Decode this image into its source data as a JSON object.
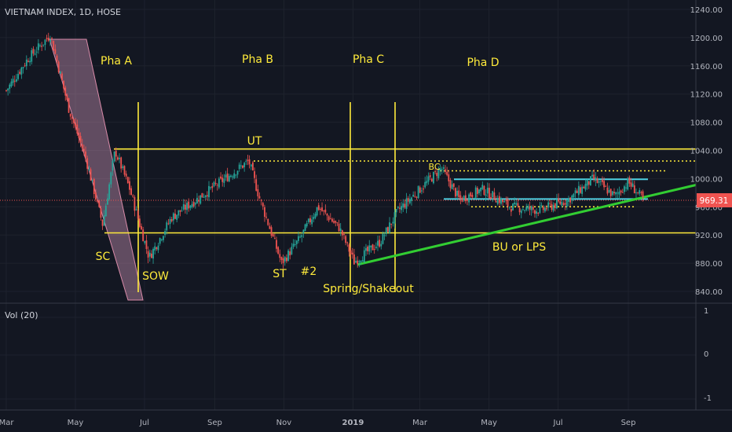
{
  "header": {
    "symbol": "VIETNAM INDEX, 1D, HOSE",
    "volume_label": "Vol (20)"
  },
  "price_badge": "969.31",
  "chart_data": {
    "type": "candlestick",
    "symbol": "VIETNAM INDEX",
    "interval": "1D",
    "exchange": "HOSE",
    "ylim": [
      830,
      1250
    ],
    "y_ticks": [
      840,
      880,
      920,
      960,
      1000,
      1040,
      1080,
      1120,
      1160,
      1200,
      1240
    ],
    "y_tick_labels": [
      "840.00",
      "880.00",
      "920.00",
      "960.00",
      "1000.00",
      "1040.00",
      "1080.00",
      "1120.00",
      "1160.00",
      "1200.00",
      "1240.00"
    ],
    "x_tick_labels": [
      "Mar",
      "May",
      "Jul",
      "Sep",
      "Nov",
      "2019",
      "Mar",
      "May",
      "Jul",
      "Sep"
    ],
    "volume_axis_ticks": [
      1,
      0,
      -1
    ],
    "last_price": 969.31,
    "price_path": [
      {
        "date": "2018-03-01",
        "value": 1125
      },
      {
        "date": "2018-03-20",
        "value": 1170
      },
      {
        "date": "2018-04-09",
        "value": 1204
      },
      {
        "date": "2018-04-25",
        "value": 1100
      },
      {
        "date": "2018-05-10",
        "value": 1030
      },
      {
        "date": "2018-05-25",
        "value": 935
      },
      {
        "date": "2018-06-05",
        "value": 1040
      },
      {
        "date": "2018-06-18",
        "value": 985
      },
      {
        "date": "2018-07-05",
        "value": 888
      },
      {
        "date": "2018-07-25",
        "value": 945
      },
      {
        "date": "2018-08-20",
        "value": 975
      },
      {
        "date": "2018-09-10",
        "value": 1000
      },
      {
        "date": "2018-10-01",
        "value": 1025
      },
      {
        "date": "2018-10-10",
        "value": 975
      },
      {
        "date": "2018-10-30",
        "value": 880
      },
      {
        "date": "2018-11-15",
        "value": 915
      },
      {
        "date": "2018-12-01",
        "value": 960
      },
      {
        "date": "2018-12-20",
        "value": 930
      },
      {
        "date": "2019-01-02",
        "value": 882
      },
      {
        "date": "2019-01-25",
        "value": 910
      },
      {
        "date": "2019-02-10",
        "value": 955
      },
      {
        "date": "2019-03-01",
        "value": 985
      },
      {
        "date": "2019-03-20",
        "value": 1015
      },
      {
        "date": "2019-04-05",
        "value": 970
      },
      {
        "date": "2019-04-25",
        "value": 985
      },
      {
        "date": "2019-05-20",
        "value": 960
      },
      {
        "date": "2019-06-15",
        "value": 955
      },
      {
        "date": "2019-07-10",
        "value": 970
      },
      {
        "date": "2019-08-01",
        "value": 1000
      },
      {
        "date": "2019-08-20",
        "value": 975
      },
      {
        "date": "2019-09-01",
        "value": 995
      },
      {
        "date": "2019-09-15",
        "value": 969
      }
    ],
    "horizontal_levels": [
      {
        "value": 1042,
        "style": "solid-yellow"
      },
      {
        "value": 923,
        "style": "solid-yellow"
      },
      {
        "value": 1025,
        "style": "dotted-yellow"
      },
      {
        "value": 1011,
        "style": "dotted-yellow"
      },
      {
        "value": 999,
        "style": "solid-cyan"
      },
      {
        "value": 971,
        "style": "solid-cyan"
      },
      {
        "value": 960,
        "style": "dotted-yellow"
      },
      {
        "value": 969.31,
        "style": "last-price"
      }
    ],
    "phase_labels": [
      "Pha A",
      "Pha B",
      "Pha C",
      "Pha D"
    ],
    "annotations": [
      "UT",
      "SC",
      "SOW",
      "ST",
      "#2",
      "Spring/Shakeout",
      "BC",
      "BU or LPS"
    ]
  },
  "colors": {
    "background": "#131722",
    "up": "#26a69a",
    "down": "#ef5350",
    "annotation": "#ffeb3b",
    "trendline": "#32cd32",
    "cyan": "#4dd0e1",
    "last_price": "#ef5350",
    "channel": "#e1a3c8"
  }
}
